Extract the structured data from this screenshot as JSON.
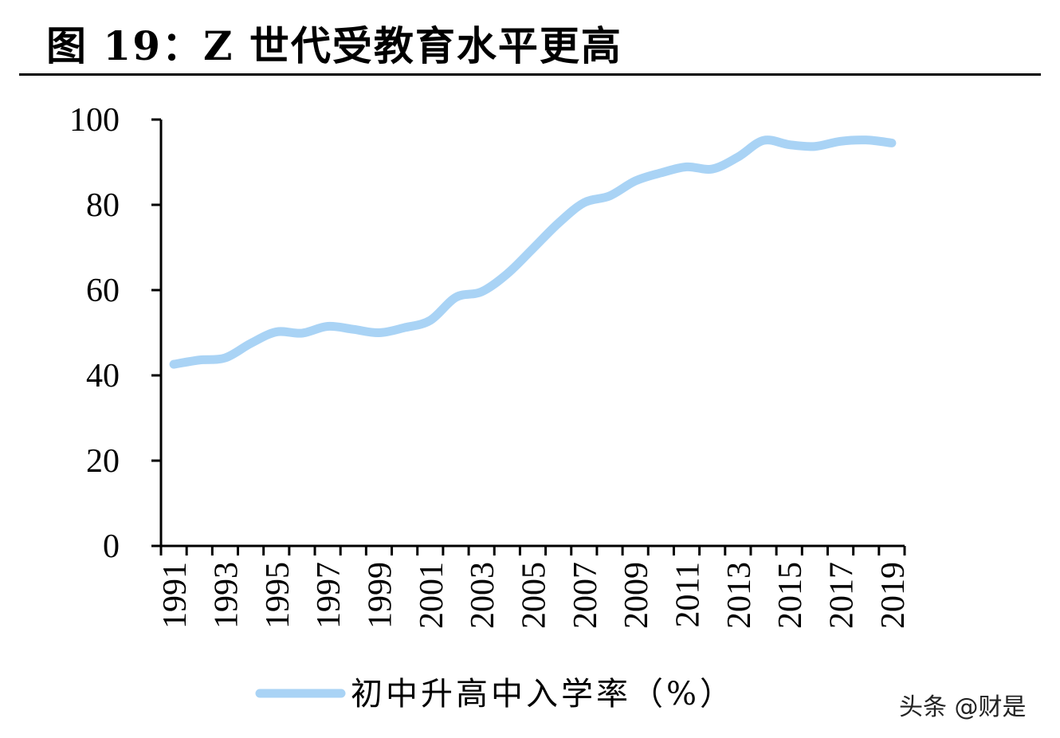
{
  "title": "图 19：Z 世代受教育水平更高",
  "watermark": "头条 @财是",
  "chart_data": {
    "type": "line",
    "title": "图 19：Z 世代受教育水平更高",
    "x": [
      1991,
      1992,
      1993,
      1994,
      1995,
      1996,
      1997,
      1998,
      1999,
      2000,
      2001,
      2002,
      2003,
      2004,
      2005,
      2006,
      2007,
      2008,
      2009,
      2010,
      2011,
      2012,
      2013,
      2014,
      2015,
      2016,
      2017,
      2018,
      2019
    ],
    "x_tick_labels": [
      "1991",
      "1993",
      "1995",
      "1997",
      "1999",
      "2001",
      "2003",
      "2005",
      "2007",
      "2009",
      "2011",
      "2013",
      "2015",
      "2017",
      "2019"
    ],
    "series": [
      {
        "name": "初中升高中入学率（%）",
        "color": "#a9d3f5",
        "values": [
          42.6,
          43.6,
          44.1,
          47.5,
          50.2,
          49.9,
          51.5,
          50.8,
          50.0,
          51.2,
          52.9,
          58.3,
          59.6,
          63.8,
          69.7,
          75.7,
          80.5,
          82.1,
          85.6,
          87.5,
          88.9,
          88.4,
          91.2,
          95.1,
          94.1,
          93.7,
          94.9,
          95.2,
          94.5
        ]
      }
    ],
    "y_ticks": [
      0,
      20,
      40,
      60,
      80,
      100
    ],
    "ylim": [
      0,
      100
    ],
    "xlabel": "",
    "ylabel": "",
    "grid": false,
    "legend": "bottom"
  }
}
